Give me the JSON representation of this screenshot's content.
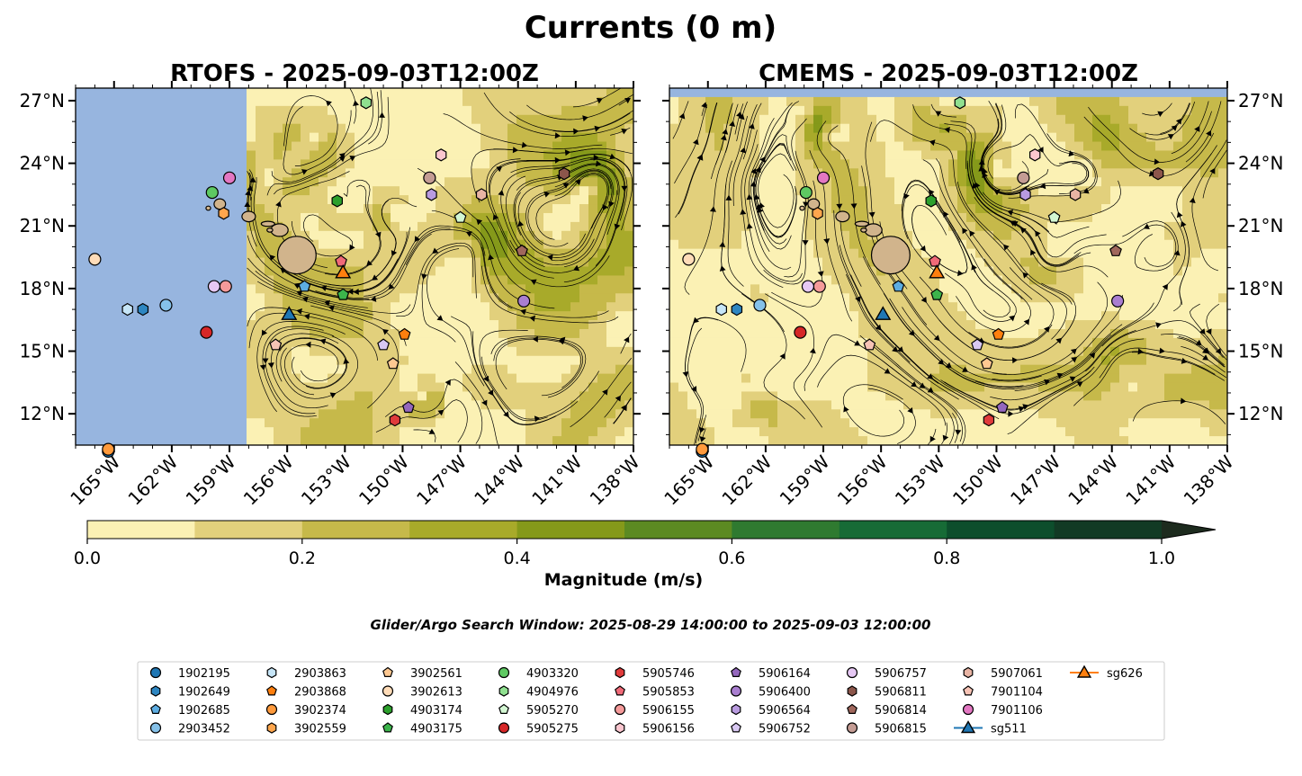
{
  "figure": {
    "suptitle": "Currents (0 m)",
    "search_window": "Glider/Argo Search Window: 2025-08-29 14:00:00 to 2025-09-03 12:00:00"
  },
  "colors": {
    "ocean": "#97b5df",
    "colormap": [
      "#fbf1b4",
      "#e2d07c",
      "#c6b94a",
      "#a8aa2a",
      "#85991a",
      "#5c8a22",
      "#2f7a30",
      "#176b36",
      "#0d4e2c",
      "#123a24",
      "#1d2b1e"
    ],
    "land": "#d1b48c"
  },
  "chart_data": [
    {
      "type": "map",
      "title": "RTOFS - 2025-09-03T12:00Z",
      "x_ticks": [
        "165°W",
        "162°W",
        "159°W",
        "156°W",
        "153°W",
        "150°W",
        "147°W",
        "144°W",
        "141°W",
        "138°W"
      ],
      "y_ticks": [
        "12°N",
        "15°N",
        "18°N",
        "21°N",
        "24°N",
        "27°N"
      ],
      "lon_range": [
        -167,
        -138
      ],
      "lat_range": [
        10.5,
        27.6
      ],
      "model_coverage_lon_min": -158.1
    },
    {
      "type": "map",
      "title": "CMEMS - 2025-09-03T12:00Z",
      "x_ticks": [
        "165°W",
        "162°W",
        "159°W",
        "156°W",
        "153°W",
        "150°W",
        "147°W",
        "144°W",
        "141°W",
        "138°W"
      ],
      "y_ticks": [
        "12°N",
        "15°N",
        "18°N",
        "21°N",
        "24°N",
        "27°N"
      ],
      "lon_range": [
        -167,
        -138
      ],
      "lat_range": [
        10.5,
        27.6
      ],
      "model_coverage_lat_max": 27.0
    }
  ],
  "colorbar": {
    "label": "Magnitude (m/s)",
    "min": 0.0,
    "max": 1.0,
    "step": 0.1,
    "ticks": [
      "0.0",
      "0.2",
      "0.4",
      "0.6",
      "0.8",
      "1.0"
    ]
  },
  "floats": [
    {
      "id": "1902195",
      "marker": "circle",
      "color": "#1f77b4",
      "lon": -165.3,
      "lat": 10.2
    },
    {
      "id": "1902649",
      "marker": "hexagon",
      "color": "#2e86c1",
      "lon": -163.5,
      "lat": 17.0
    },
    {
      "id": "1902685",
      "marker": "pentagon",
      "color": "#5dade2",
      "lon": -155.1,
      "lat": 18.1
    },
    {
      "id": "2903452",
      "marker": "circle",
      "color": "#85c1e9",
      "lon": -162.3,
      "lat": 17.2
    },
    {
      "id": "2903863",
      "marker": "hexagon",
      "color": "#c6e5f7",
      "lon": -164.3,
      "lat": 17.0
    },
    {
      "id": "2903868",
      "marker": "pentagon",
      "color": "#ff7f0e",
      "lon": -149.9,
      "lat": 15.8
    },
    {
      "id": "3902374",
      "marker": "circle",
      "color": "#ff9a3c",
      "lon": -165.3,
      "lat": 10.3
    },
    {
      "id": "3902559",
      "marker": "hexagon",
      "color": "#ffa64d",
      "lon": -159.3,
      "lat": 21.6
    },
    {
      "id": "3902561",
      "marker": "pentagon",
      "color": "#ffc891",
      "lon": -150.5,
      "lat": 14.4
    },
    {
      "id": "3902613",
      "marker": "circle",
      "color": "#ffdcb8",
      "lon": -166.0,
      "lat": 19.4
    },
    {
      "id": "4903174",
      "marker": "hexagon",
      "color": "#2ca02c",
      "lon": -153.4,
      "lat": 22.2
    },
    {
      "id": "4903175",
      "marker": "pentagon",
      "color": "#3cb44b",
      "lon": -153.1,
      "lat": 17.7
    },
    {
      "id": "4903320",
      "marker": "circle",
      "color": "#5ec962",
      "lon": -159.9,
      "lat": 22.6
    },
    {
      "id": "4904976",
      "marker": "hexagon",
      "color": "#8fe08f",
      "lon": -151.9,
      "lat": 26.9
    },
    {
      "id": "5905270",
      "marker": "pentagon",
      "color": "#d3f7d3",
      "lon": -147.0,
      "lat": 21.4
    },
    {
      "id": "5905275",
      "marker": "circle",
      "color": "#d62728",
      "lon": -160.2,
      "lat": 15.9
    },
    {
      "id": "5905746",
      "marker": "hexagon",
      "color": "#e03b3b",
      "lon": -150.4,
      "lat": 11.7
    },
    {
      "id": "5905853",
      "marker": "pentagon",
      "color": "#f06a78",
      "lon": -153.2,
      "lat": 19.3
    },
    {
      "id": "5906155",
      "marker": "circle",
      "color": "#f59a9a",
      "lon": -159.2,
      "lat": 18.1
    },
    {
      "id": "5906156",
      "marker": "hexagon",
      "color": "#fbc6cf",
      "lon": -148.0,
      "lat": 24.4
    },
    {
      "id": "5906164",
      "marker": "pentagon",
      "color": "#9467bd",
      "lon": -149.7,
      "lat": 12.3
    },
    {
      "id": "5906400",
      "marker": "circle",
      "color": "#a97ed0",
      "lon": -143.7,
      "lat": 17.4
    },
    {
      "id": "5906564",
      "marker": "hexagon",
      "color": "#b99be0",
      "lon": -148.5,
      "lat": 22.5
    },
    {
      "id": "5906752",
      "marker": "pentagon",
      "color": "#d8c8f2",
      "lon": -151.0,
      "lat": 15.3
    },
    {
      "id": "5906757",
      "marker": "circle",
      "color": "#e6c8f4",
      "lon": -159.8,
      "lat": 18.1
    },
    {
      "id": "5906811",
      "marker": "hexagon",
      "color": "#8c564b",
      "lon": -141.6,
      "lat": 23.5
    },
    {
      "id": "5906814",
      "marker": "pentagon",
      "color": "#a0675c",
      "lon": -143.8,
      "lat": 19.8
    },
    {
      "id": "5906815",
      "marker": "circle",
      "color": "#c49c94",
      "lon": -148.6,
      "lat": 23.3
    },
    {
      "id": "5907061",
      "marker": "hexagon",
      "color": "#e8b4a4",
      "lon": -145.9,
      "lat": 22.5
    },
    {
      "id": "7901104",
      "marker": "pentagon",
      "color": "#f7c3b5",
      "lon": -156.6,
      "lat": 15.3
    },
    {
      "id": "7901106",
      "marker": "circle",
      "color": "#e377c2",
      "lon": -159.0,
      "lat": 23.3
    }
  ],
  "gliders": [
    {
      "id": "sg511",
      "color": "#1f77b4",
      "lon": -155.9,
      "lat": 16.8
    },
    {
      "id": "sg626",
      "color": "#ff7f0e",
      "lon": -153.1,
      "lat": 18.8
    }
  ]
}
